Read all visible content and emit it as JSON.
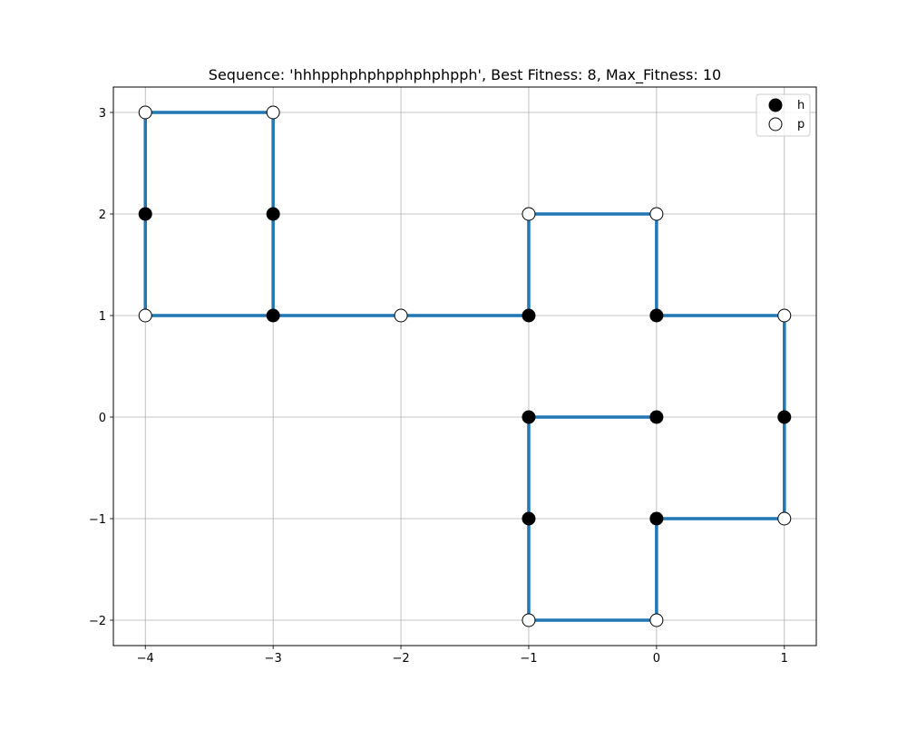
{
  "chart_data": {
    "type": "line",
    "title": "Sequence: 'hhhpphphphpphphphpph', Best Fitness: 8, Max_Fitness: 10",
    "xlabel": "",
    "ylabel": "",
    "xlim": [
      -4.25,
      1.25
    ],
    "ylim": [
      -2.25,
      3.25
    ],
    "xticks": [
      {
        "value": -4,
        "label": "−4"
      },
      {
        "value": -3,
        "label": "−3"
      },
      {
        "value": -2,
        "label": "−2"
      },
      {
        "value": -1,
        "label": "−1"
      },
      {
        "value": 0,
        "label": "0"
      },
      {
        "value": 1,
        "label": "1"
      }
    ],
    "yticks": [
      {
        "value": -2,
        "label": "−2"
      },
      {
        "value": -1,
        "label": "−1"
      },
      {
        "value": 0,
        "label": "0"
      },
      {
        "value": 1,
        "label": "1"
      },
      {
        "value": 2,
        "label": "2"
      },
      {
        "value": 3,
        "label": "3"
      }
    ],
    "grid": true,
    "legend_position": "top-right",
    "legend": [
      {
        "label": "h",
        "marker": "filled-circle"
      },
      {
        "label": "p",
        "marker": "open-circle"
      }
    ],
    "line_color": "#1f77b4",
    "marker_color": "#000000",
    "points": [
      {
        "x": -3,
        "y": 2,
        "residue": "h"
      },
      {
        "x": -3,
        "y": 1,
        "residue": "h"
      },
      {
        "x": -4,
        "y": 1,
        "residue": "p"
      },
      {
        "x": -4,
        "y": 2,
        "residue": "h"
      },
      {
        "x": -4,
        "y": 3,
        "residue": "p"
      },
      {
        "x": -3,
        "y": 3,
        "residue": "p"
      }
    ],
    "chain": [
      {
        "x": -3,
        "y": 3,
        "residue": "p"
      },
      {
        "x": -3,
        "y": 2,
        "residue": "h"
      },
      {
        "x": -3,
        "y": 1,
        "residue": "h"
      },
      {
        "x": -2,
        "y": 1,
        "residue": "p"
      },
      {
        "x": -1,
        "y": 1,
        "residue": "h"
      },
      {
        "x": -1,
        "y": 2,
        "residue": "p"
      },
      {
        "x": 0,
        "y": 2,
        "residue": "p"
      },
      {
        "x": 0,
        "y": 1,
        "residue": "h"
      },
      {
        "x": 1,
        "y": 1,
        "residue": "p"
      },
      {
        "x": 1,
        "y": 0,
        "residue": "h"
      },
      {
        "x": 1,
        "y": -1,
        "residue": "p"
      },
      {
        "x": 0,
        "y": -1,
        "residue": "h"
      },
      {
        "x": 0,
        "y": -2,
        "residue": "p"
      },
      {
        "x": -1,
        "y": -2,
        "residue": "p"
      },
      {
        "x": -1,
        "y": -1,
        "residue": "h"
      },
      {
        "x": -1,
        "y": 0,
        "residue": "h"
      },
      {
        "x": 0,
        "y": 0,
        "residue": "h"
      }
    ],
    "head": [
      {
        "x": -3,
        "y": 1,
        "residue": "h"
      },
      {
        "x": -4,
        "y": 1,
        "residue": "p"
      },
      {
        "x": -4,
        "y": 2,
        "residue": "h"
      },
      {
        "x": -4,
        "y": 3,
        "residue": "p"
      },
      {
        "x": -3,
        "y": 3,
        "residue": "p"
      }
    ]
  }
}
